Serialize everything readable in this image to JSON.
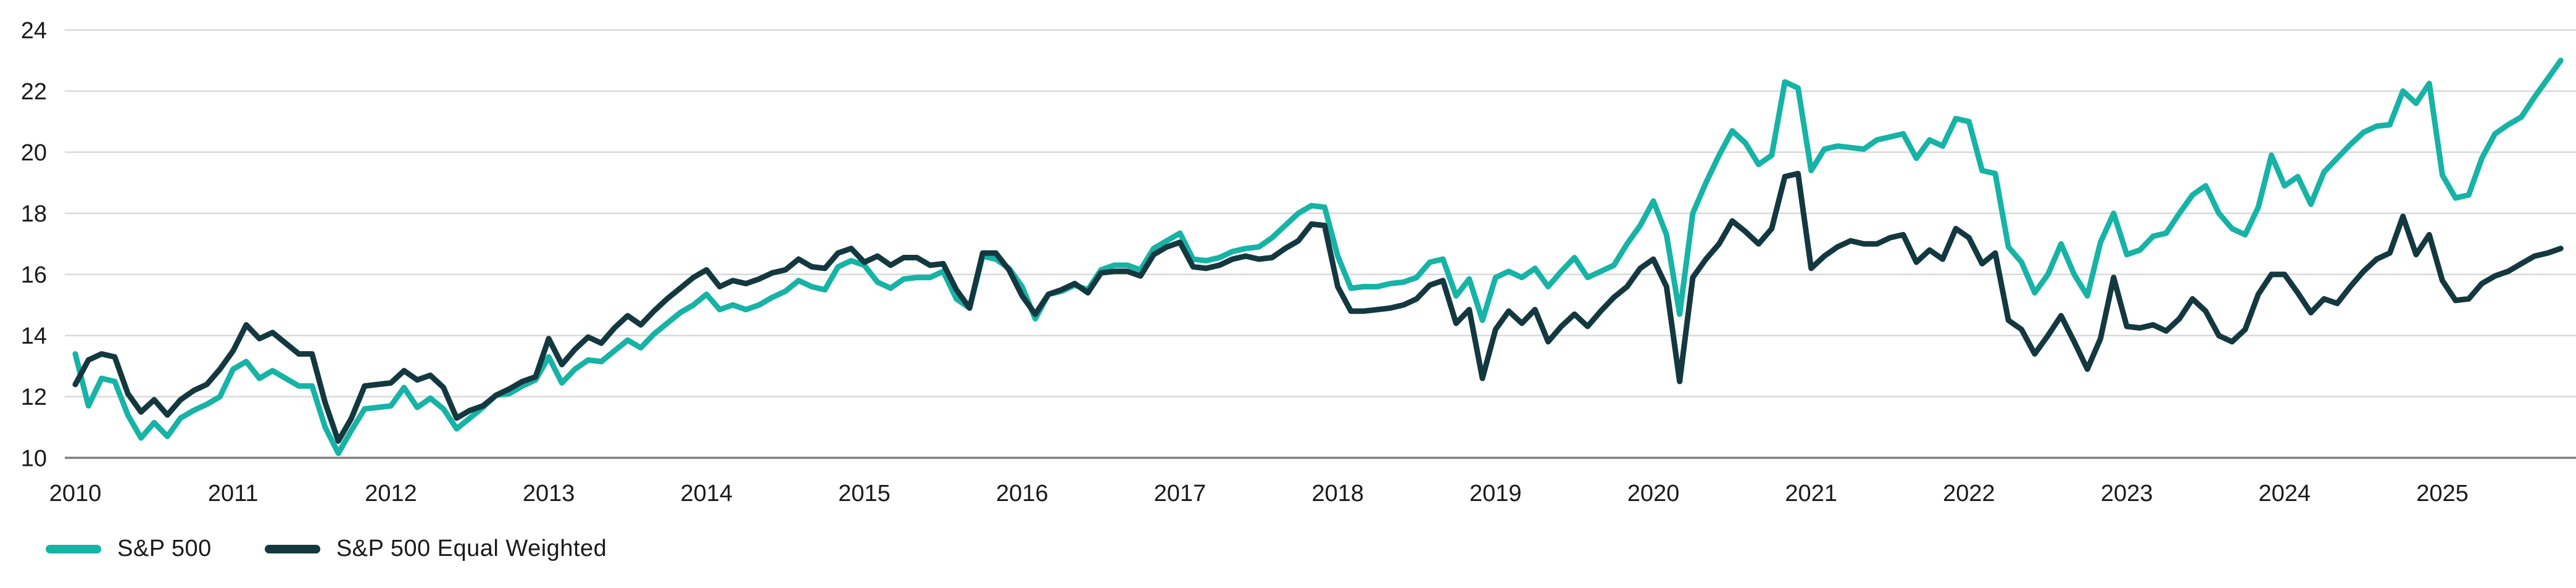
{
  "chart_data": {
    "type": "line",
    "title": "",
    "xlabel": "",
    "ylabel": "",
    "x_axis": {
      "tick_labels": [
        "2010",
        "2011",
        "2012",
        "2013",
        "2014",
        "2015",
        "2016",
        "2017",
        "2018",
        "2019",
        "2020",
        "2021",
        "2022",
        "2023",
        "2024",
        "2025"
      ],
      "start_year": 2010,
      "points_per_year": 12
    },
    "y_axis": {
      "ticks": [
        10,
        12,
        14,
        16,
        18,
        20,
        22,
        24
      ],
      "range": [
        10,
        24
      ]
    },
    "grid": "horizontal",
    "legend_position": "bottom-left",
    "colors": {
      "grid_line": "#d9d9d9",
      "axis_line": "#7f7f7f",
      "tick_text": "#1a1a1a"
    },
    "series": [
      {
        "name": "S&P 500",
        "color": "#16b3a6",
        "values": [
          13.4,
          11.7,
          12.6,
          12.5,
          11.4,
          10.65,
          11.15,
          10.7,
          11.3,
          11.55,
          11.75,
          12.0,
          12.9,
          13.15,
          12.6,
          12.85,
          12.6,
          12.35,
          12.35,
          11.0,
          10.15,
          10.9,
          11.6,
          11.65,
          11.7,
          12.3,
          11.65,
          11.95,
          11.6,
          10.95,
          11.3,
          11.65,
          12.05,
          12.1,
          12.35,
          12.55,
          13.3,
          12.45,
          12.9,
          13.2,
          13.15,
          13.5,
          13.85,
          13.6,
          14.05,
          14.4,
          14.75,
          15.0,
          15.35,
          14.85,
          15.0,
          14.85,
          15.0,
          15.25,
          15.45,
          15.8,
          15.6,
          15.5,
          16.25,
          16.45,
          16.3,
          15.75,
          15.55,
          15.85,
          15.9,
          15.9,
          16.1,
          15.2,
          14.9,
          16.6,
          16.5,
          16.2,
          15.6,
          14.55,
          15.35,
          15.45,
          15.65,
          15.5,
          16.15,
          16.3,
          16.3,
          16.15,
          16.85,
          17.1,
          17.35,
          16.5,
          16.45,
          16.55,
          16.75,
          16.85,
          16.9,
          17.2,
          17.6,
          18.0,
          18.25,
          18.2,
          16.6,
          15.55,
          15.6,
          15.6,
          15.7,
          15.75,
          15.9,
          16.4,
          16.5,
          15.3,
          15.85,
          14.5,
          15.9,
          16.1,
          15.9,
          16.2,
          15.6,
          16.1,
          16.55,
          15.9,
          16.1,
          16.3,
          17.0,
          17.6,
          18.4,
          17.3,
          14.7,
          18.0,
          19.0,
          19.9,
          20.7,
          20.3,
          19.6,
          19.9,
          22.3,
          22.1,
          19.4,
          20.1,
          20.2,
          20.15,
          20.1,
          20.4,
          20.5,
          20.6,
          19.8,
          20.4,
          20.2,
          21.1,
          21.0,
          19.4,
          19.3,
          16.9,
          16.4,
          15.4,
          16.0,
          17.0,
          16.0,
          15.3,
          17.05,
          18.0,
          16.65,
          16.8,
          17.25,
          17.35,
          18.0,
          18.6,
          18.9,
          18.0,
          17.5,
          17.3,
          18.2,
          19.9,
          18.9,
          19.2,
          18.3,
          19.35,
          19.8,
          20.25,
          20.65,
          20.85,
          20.9,
          22.0,
          21.6,
          22.25,
          19.25,
          18.5,
          18.6,
          19.8,
          20.6,
          20.9,
          21.15,
          21.8,
          22.4,
          23.0
        ]
      },
      {
        "name": "S&P 500 Equal Weighted",
        "color": "#14383f",
        "values": [
          12.4,
          13.2,
          13.4,
          13.3,
          12.1,
          11.5,
          11.9,
          11.4,
          11.9,
          12.2,
          12.4,
          12.9,
          13.5,
          14.35,
          13.9,
          14.1,
          13.75,
          13.4,
          13.4,
          11.8,
          10.55,
          11.3,
          12.35,
          12.4,
          12.45,
          12.85,
          12.55,
          12.7,
          12.3,
          11.3,
          11.55,
          11.7,
          12.05,
          12.25,
          12.5,
          12.65,
          13.9,
          13.05,
          13.55,
          13.95,
          13.75,
          14.25,
          14.65,
          14.35,
          14.8,
          15.2,
          15.55,
          15.9,
          16.15,
          15.6,
          15.8,
          15.7,
          15.85,
          16.05,
          16.15,
          16.5,
          16.25,
          16.2,
          16.7,
          16.85,
          16.4,
          16.6,
          16.3,
          16.55,
          16.55,
          16.3,
          16.35,
          15.5,
          14.9,
          16.7,
          16.7,
          16.15,
          15.3,
          14.7,
          15.35,
          15.5,
          15.7,
          15.4,
          16.05,
          16.1,
          16.1,
          15.95,
          16.65,
          16.9,
          17.05,
          16.25,
          16.2,
          16.3,
          16.5,
          16.6,
          16.5,
          16.55,
          16.85,
          17.1,
          17.65,
          17.6,
          15.6,
          14.8,
          14.8,
          14.85,
          14.9,
          15.0,
          15.2,
          15.65,
          15.8,
          14.4,
          14.85,
          12.6,
          14.2,
          14.8,
          14.4,
          14.85,
          13.8,
          14.3,
          14.7,
          14.3,
          14.8,
          15.25,
          15.6,
          16.2,
          16.5,
          15.6,
          12.5,
          15.9,
          16.5,
          17.0,
          17.75,
          17.4,
          17.0,
          17.5,
          19.2,
          19.3,
          16.2,
          16.6,
          16.9,
          17.1,
          17.0,
          17.0,
          17.2,
          17.3,
          16.4,
          16.8,
          16.5,
          17.5,
          17.2,
          16.35,
          16.7,
          14.5,
          14.2,
          13.4,
          14.0,
          14.65,
          13.8,
          12.9,
          13.9,
          15.9,
          14.3,
          14.25,
          14.35,
          14.15,
          14.55,
          15.2,
          14.8,
          14.0,
          13.8,
          14.2,
          15.35,
          16.0,
          16.0,
          15.4,
          14.75,
          15.2,
          15.05,
          15.6,
          16.1,
          16.5,
          16.7,
          17.9,
          16.65,
          17.3,
          15.8,
          15.15,
          15.2,
          15.7,
          15.95,
          16.1,
          16.35,
          16.6,
          16.7,
          16.85
        ]
      }
    ]
  },
  "legend": {
    "items": [
      {
        "label": "S&P 500"
      },
      {
        "label": "S&P 500 Equal Weighted"
      }
    ]
  }
}
